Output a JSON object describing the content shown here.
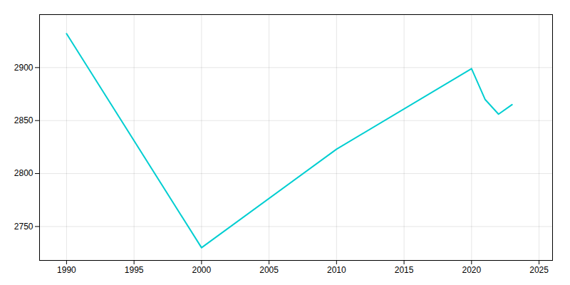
{
  "chart_data": {
    "type": "line",
    "x": [
      1990,
      2000,
      2010,
      2020,
      2021,
      2022,
      2023
    ],
    "values": [
      2932,
      2730,
      2823,
      2899,
      2870,
      2856,
      2865
    ],
    "color": "#00CED1",
    "xlim": [
      1988,
      2026
    ],
    "ylim": [
      2718,
      2950
    ],
    "xticks": [
      1990,
      1995,
      2000,
      2005,
      2010,
      2015,
      2020,
      2025
    ],
    "yticks": [
      2750,
      2800,
      2850,
      2900
    ],
    "grid": true
  }
}
